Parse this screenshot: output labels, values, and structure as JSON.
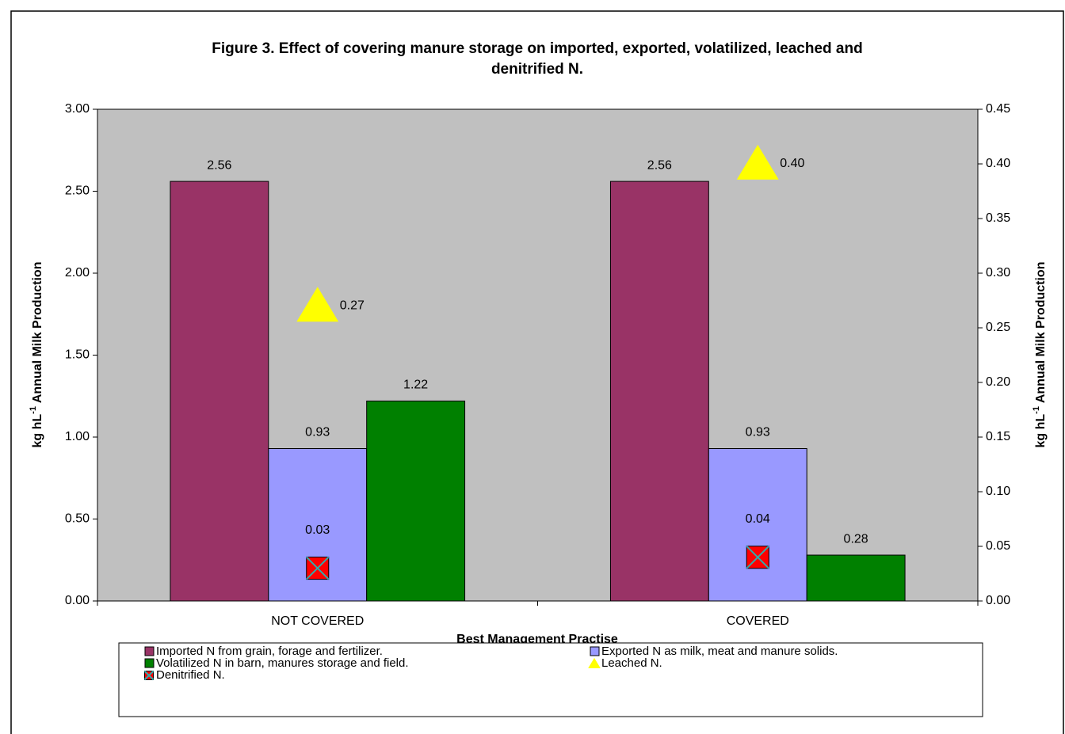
{
  "chart_data": {
    "type": "bar",
    "title_lines": [
      "Figure 3. Effect of covering manure storage on imported, exported, volatilized, leached and",
      "denitrified N."
    ],
    "x_label": "Best Management Practise",
    "y_label": {
      "base": "kg hL",
      "sup": "-1",
      "rest": " Annual Milk Production"
    },
    "y2_label": {
      "base": "kg hL",
      "sup": "-1",
      "rest": " Annual Milk Production"
    },
    "categories": [
      "NOT COVERED",
      "COVERED"
    ],
    "series": [
      {
        "name": "Imported N from grain, forage and fertilizer.",
        "color": "#993366",
        "values": [
          2.56,
          2.56
        ],
        "kind": "bar"
      },
      {
        "name": "Exported N as milk, meat and manure solids.",
        "color": "#9999ff",
        "values": [
          0.93,
          0.93
        ],
        "kind": "bar"
      },
      {
        "name": "Volatilized N in barn, manures storage and field.",
        "color": "#008000",
        "values": [
          1.22,
          0.28
        ],
        "kind": "bar"
      },
      {
        "name": "Leached N.",
        "color": "#ffff00",
        "values": [
          0.27,
          0.4
        ],
        "value_labels": [
          "0.27",
          "0.40"
        ],
        "kind": "triangle",
        "axis": "y2"
      },
      {
        "name": "Denitrified N.",
        "color": "#ff0000",
        "values": [
          0.03,
          0.04
        ],
        "kind": "xsquare",
        "axis": "y2"
      }
    ],
    "ylim": [
      0,
      3
    ],
    "yticks": [
      {
        "value": 0,
        "label": "0.00"
      },
      {
        "value": 0.5,
        "label": "0.50"
      },
      {
        "value": 1,
        "label": "1.00"
      },
      {
        "value": 1.5,
        "label": "1.50"
      },
      {
        "value": 2,
        "label": "2.00"
      },
      {
        "value": 2.5,
        "label": "2.50"
      },
      {
        "value": 3,
        "label": "3.00"
      }
    ],
    "y2lim": [
      0,
      0.45
    ],
    "y2ticks": [
      {
        "value": 0,
        "label": "0.00"
      },
      {
        "value": 0.05,
        "label": "0.05"
      },
      {
        "value": 0.1,
        "label": "0.10"
      },
      {
        "value": 0.15,
        "label": "0.15"
      },
      {
        "value": 0.2,
        "label": "0.20"
      },
      {
        "value": 0.25,
        "label": "0.25"
      },
      {
        "value": 0.3,
        "label": "0.30"
      },
      {
        "value": 0.35,
        "label": "0.35"
      },
      {
        "value": 0.4,
        "label": "0.40"
      },
      {
        "value": 0.45,
        "label": "0.45"
      }
    ],
    "legend": "bottom",
    "plot_background": "#c0c0c0"
  }
}
